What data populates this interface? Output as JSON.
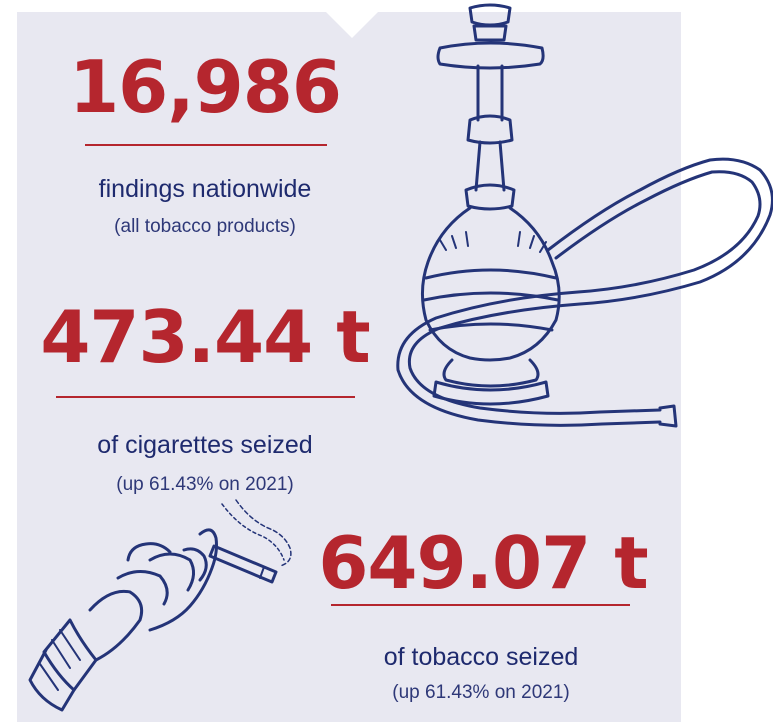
{
  "stats": [
    {
      "value": "16,986",
      "label": "findings nationwide",
      "note": "(all tobacco products)"
    },
    {
      "value": "473.44 t",
      "label": "of cigarettes seized",
      "note": "(up 61.43% on 2021)"
    },
    {
      "value": "649.07 t",
      "label": "of tobacco seized",
      "note": "(up 61.43% on 2021)"
    }
  ],
  "colors": {
    "accent": "#b5262e",
    "text": "#1e2a6e",
    "panel": "#e8e8f1",
    "illustration": "#243478"
  },
  "illustrations": [
    "hookah-illustration",
    "hand-cigarette-illustration"
  ]
}
